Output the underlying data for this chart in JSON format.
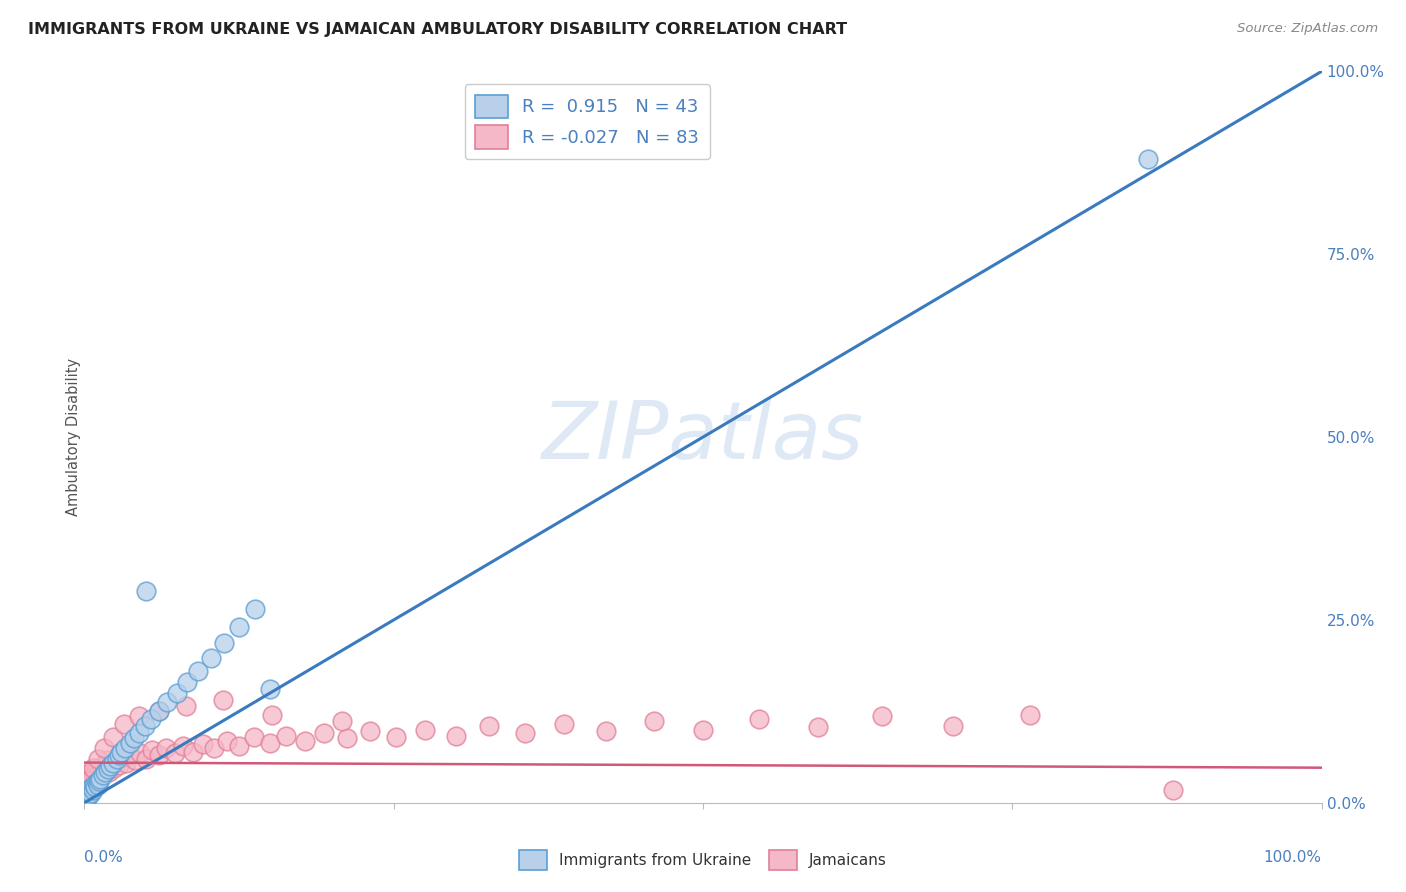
{
  "title": "IMMIGRANTS FROM UKRAINE VS JAMAICAN AMBULATORY DISABILITY CORRELATION CHART",
  "source": "Source: ZipAtlas.com",
  "ylabel": "Ambulatory Disability",
  "ukraine_R": 0.915,
  "ukraine_N": 43,
  "jamaican_R": -0.027,
  "jamaican_N": 83,
  "ukraine_color": "#b8d0ea",
  "ukraine_edge_color": "#5a9fd4",
  "ukraine_line_color": "#3a7abf",
  "jamaican_color": "#f5b8c8",
  "jamaican_edge_color": "#e08098",
  "jamaican_line_color": "#d05878",
  "watermark": "ZIPatlas",
  "background_color": "#ffffff",
  "grid_color": "#c8d4e8",
  "axis_color": "#4a7fc0",
  "title_color": "#222222",
  "source_color": "#888888",
  "ylabel_color": "#555555",
  "xlim": [
    0.0,
    1.0
  ],
  "ylim": [
    0.0,
    1.0
  ],
  "ytick_vals": [
    0.0,
    0.25,
    0.5,
    0.75,
    1.0
  ],
  "ytick_labels": [
    "0.0%",
    "25.0%",
    "50.0%",
    "75.0%",
    "100.0%"
  ],
  "xtick_label_left": "0.0%",
  "xtick_label_right": "100.0%",
  "ukraine_x": [
    0.001,
    0.002,
    0.002,
    0.003,
    0.003,
    0.004,
    0.004,
    0.005,
    0.005,
    0.006,
    0.007,
    0.008,
    0.009,
    0.01,
    0.011,
    0.012,
    0.013,
    0.015,
    0.017,
    0.019,
    0.021,
    0.023,
    0.026,
    0.028,
    0.03,
    0.033,
    0.037,
    0.04,
    0.044,
    0.049,
    0.054,
    0.06,
    0.067,
    0.075,
    0.083,
    0.092,
    0.102,
    0.113,
    0.125,
    0.138,
    0.05,
    0.86,
    0.15
  ],
  "ukraine_y": [
    0.008,
    0.012,
    0.006,
    0.015,
    0.009,
    0.018,
    0.01,
    0.02,
    0.013,
    0.022,
    0.018,
    0.025,
    0.022,
    0.028,
    0.025,
    0.03,
    0.032,
    0.038,
    0.042,
    0.046,
    0.05,
    0.055,
    0.06,
    0.065,
    0.07,
    0.075,
    0.082,
    0.088,
    0.095,
    0.105,
    0.115,
    0.125,
    0.138,
    0.15,
    0.165,
    0.18,
    0.198,
    0.218,
    0.24,
    0.265,
    0.29,
    0.88,
    0.155
  ],
  "jamaican_x": [
    0.001,
    0.001,
    0.002,
    0.002,
    0.003,
    0.003,
    0.004,
    0.004,
    0.005,
    0.005,
    0.006,
    0.006,
    0.007,
    0.007,
    0.008,
    0.008,
    0.009,
    0.009,
    0.01,
    0.01,
    0.011,
    0.012,
    0.013,
    0.014,
    0.015,
    0.016,
    0.017,
    0.018,
    0.02,
    0.022,
    0.024,
    0.026,
    0.028,
    0.031,
    0.034,
    0.037,
    0.041,
    0.045,
    0.05,
    0.055,
    0.06,
    0.066,
    0.073,
    0.08,
    0.088,
    0.096,
    0.105,
    0.115,
    0.125,
    0.137,
    0.15,
    0.163,
    0.178,
    0.194,
    0.212,
    0.231,
    0.252,
    0.275,
    0.3,
    0.327,
    0.356,
    0.388,
    0.422,
    0.46,
    0.5,
    0.545,
    0.593,
    0.645,
    0.702,
    0.764,
    0.004,
    0.007,
    0.011,
    0.016,
    0.023,
    0.032,
    0.044,
    0.06,
    0.082,
    0.112,
    0.152,
    0.208,
    0.88
  ],
  "jamaican_y": [
    0.02,
    0.035,
    0.025,
    0.04,
    0.018,
    0.032,
    0.028,
    0.038,
    0.022,
    0.035,
    0.03,
    0.042,
    0.025,
    0.038,
    0.032,
    0.045,
    0.028,
    0.04,
    0.033,
    0.048,
    0.038,
    0.042,
    0.035,
    0.048,
    0.04,
    0.052,
    0.045,
    0.058,
    0.042,
    0.055,
    0.048,
    0.06,
    0.052,
    0.062,
    0.055,
    0.065,
    0.058,
    0.068,
    0.06,
    0.072,
    0.065,
    0.075,
    0.068,
    0.078,
    0.07,
    0.08,
    0.075,
    0.085,
    0.078,
    0.09,
    0.082,
    0.092,
    0.085,
    0.095,
    0.088,
    0.098,
    0.09,
    0.1,
    0.092,
    0.105,
    0.095,
    0.108,
    0.098,
    0.112,
    0.1,
    0.115,
    0.103,
    0.118,
    0.105,
    0.12,
    0.03,
    0.048,
    0.06,
    0.075,
    0.09,
    0.108,
    0.118,
    0.125,
    0.132,
    0.14,
    0.12,
    0.112,
    0.018
  ],
  "ukraine_line_x0": 0.0,
  "ukraine_line_y0": 0.0,
  "ukraine_line_x1": 1.0,
  "ukraine_line_y1": 1.0,
  "jamaican_line_x0": 0.0,
  "jamaican_line_y0": 0.055,
  "jamaican_line_x1": 1.0,
  "jamaican_line_y1": 0.048
}
